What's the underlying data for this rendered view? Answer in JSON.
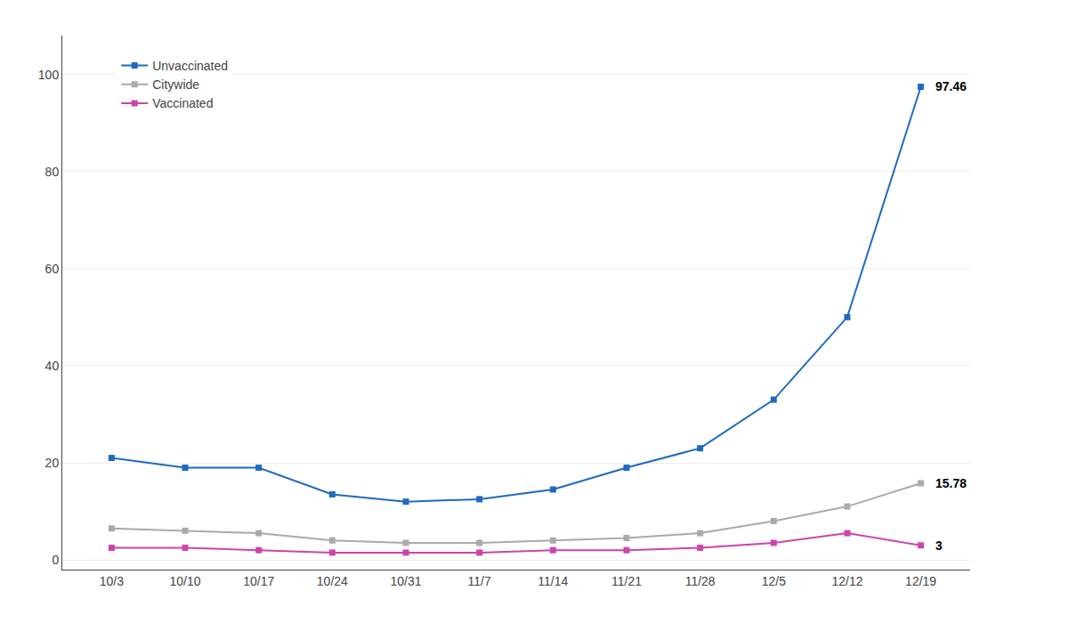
{
  "chart_data": {
    "type": "line",
    "categories": [
      "10/3",
      "10/10",
      "10/17",
      "10/24",
      "10/31",
      "11/7",
      "11/14",
      "11/21",
      "11/28",
      "12/5",
      "12/12",
      "12/19"
    ],
    "series": [
      {
        "name": "Unvaccinated",
        "color": "#1f6abf",
        "values": [
          21.0,
          19.0,
          19.0,
          13.5,
          12.0,
          12.5,
          14.5,
          19.0,
          23.0,
          33.0,
          50.0,
          97.46
        ]
      },
      {
        "name": "Citywide",
        "color": "#aaaaaa",
        "values": [
          6.5,
          6.0,
          5.5,
          4.0,
          3.5,
          3.5,
          4.0,
          4.5,
          5.5,
          8.0,
          11.0,
          15.78
        ]
      },
      {
        "name": "Vaccinated",
        "color": "#cc44aa",
        "values": [
          2.5,
          2.5,
          2.0,
          1.5,
          1.5,
          1.5,
          2.0,
          2.0,
          2.5,
          3.5,
          5.5,
          3.0
        ]
      }
    ],
    "annotations": [
      {
        "text": "97.46",
        "x": "12/19",
        "y": 97.46
      },
      {
        "text": "15.78",
        "x": "12/19",
        "y": 15.78
      },
      {
        "text": "3",
        "x": "12/19",
        "y": 3.0
      }
    ],
    "marker": "square",
    "ylim": [
      -2,
      108
    ],
    "yticks": [
      0,
      20,
      40,
      60,
      80,
      100
    ],
    "grid": true,
    "legend": "upper left"
  }
}
